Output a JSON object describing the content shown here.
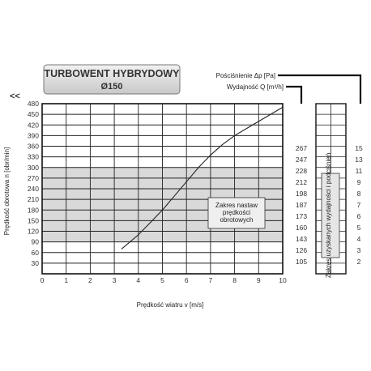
{
  "chart_data": {
    "type": "line",
    "title": "TURBOWENT HYBRYDOWY",
    "subtitle": "Ø150",
    "xlabel": "Prędkość wiatru v [m/s]",
    "ylabel": "Prędkość obrotowa n [obr/min]",
    "xlim": [
      0,
      10
    ],
    "ylim": [
      0,
      480
    ],
    "x_ticks": [
      0,
      1,
      2,
      3,
      4,
      5,
      6,
      7,
      8,
      9,
      10
    ],
    "y_ticks": [
      30,
      60,
      90,
      120,
      150,
      180,
      210,
      240,
      270,
      300,
      330,
      360,
      390,
      420,
      450,
      480
    ],
    "y_tick_labels": [
      "30",
      "60",
      "90",
      "120",
      "150",
      "180",
      "210",
      "240",
      "270",
      "300",
      "330",
      "360",
      "390",
      "420",
      "450",
      "480"
    ],
    "grid": true,
    "shaded_band": {
      "y_from": 90,
      "y_to": 300,
      "label": "Zakres nastaw prędkości obrotowych"
    },
    "series": [
      {
        "x": [
          3.3,
          4.0,
          4.5,
          5.0,
          5.5,
          6.0,
          6.5,
          7.0,
          7.5,
          8.0,
          8.5,
          9.0,
          9.5,
          10.0
        ],
        "values": [
          70,
          110,
          145,
          180,
          220,
          260,
          300,
          335,
          365,
          390,
          410,
          430,
          450,
          470
        ]
      }
    ],
    "pressure_axis": {
      "label": "Pościśnienie Δp [Pa]",
      "ticks": [
        "267",
        "247",
        "228",
        "212",
        "198",
        "187",
        "173",
        "160",
        "143",
        "126",
        "105"
      ]
    },
    "flow_axis": {
      "label": "Wydajność Q [m³/h]",
      "ticks": [
        "15",
        "13",
        "11",
        "9",
        "8",
        "7",
        "6",
        "5",
        "4",
        "3",
        "2"
      ]
    },
    "flow_box_label": "Zakres uzyskanych wydajności i podciśnień",
    "corner_mark": "<<"
  }
}
